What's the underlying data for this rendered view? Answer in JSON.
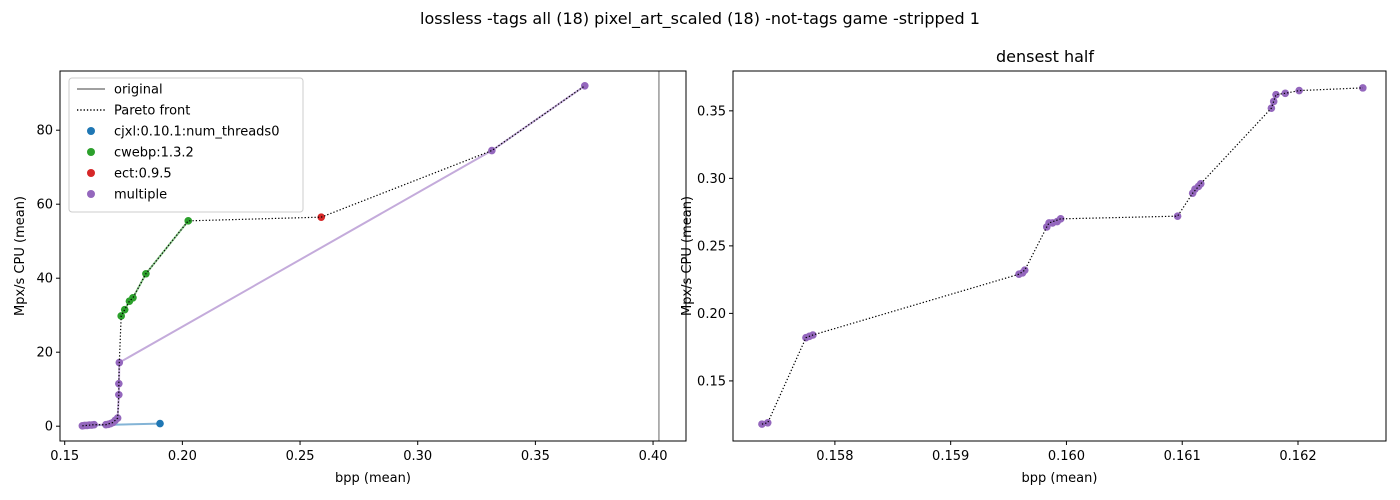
{
  "figure": {
    "suptitle": "lossless -tags all (18) pixel_art_scaled (18) -not-tags game -stripped 1"
  },
  "chart_data": [
    {
      "type": "scatter",
      "title": "",
      "xlabel": "bpp (mean)",
      "ylabel": "Mpx/s CPU (mean)",
      "xlim": [
        0.148,
        0.414
      ],
      "ylim": [
        -4,
        96
      ],
      "xticks": [
        0.15,
        0.2,
        0.25,
        0.3,
        0.35,
        0.4
      ],
      "xtick_labels": [
        "0.15",
        "0.20",
        "0.25",
        "0.30",
        "0.35",
        "0.40"
      ],
      "yticks": [
        0,
        20,
        40,
        60,
        80
      ],
      "ytick_labels": [
        "0",
        "20",
        "40",
        "60",
        "80"
      ],
      "grid": false,
      "legend": {
        "position": "top-left",
        "entries": [
          {
            "label": "original",
            "kind": "line",
            "color": "#808080"
          },
          {
            "label": "Pareto front",
            "kind": "dotted",
            "color": "#000000"
          },
          {
            "label": "cjxl:0.10.1:num_threads0",
            "kind": "marker",
            "color": "#1f77b4"
          },
          {
            "label": "cwebp:1.3.2",
            "kind": "marker",
            "color": "#2ca02c"
          },
          {
            "label": "ect:0.9.5",
            "kind": "marker",
            "color": "#d62728"
          },
          {
            "label": "multiple",
            "kind": "marker",
            "color": "#9467bd"
          }
        ]
      },
      "original_x": 0.4025,
      "series": [
        {
          "name": "cjxl:0.10.1:num_threads0",
          "color": "#1f77b4",
          "x": [
            0.1905
          ],
          "y": [
            0.7
          ],
          "line_x": [
            0.1575,
            0.1905
          ],
          "line_y": [
            0.2,
            0.7
          ]
        },
        {
          "name": "cwebp:1.3.2",
          "color": "#2ca02c",
          "x": [
            0.174,
            0.1755,
            0.1775,
            0.179,
            0.1845,
            0.2025
          ],
          "y": [
            29.8,
            31.5,
            33.8,
            34.7,
            41.2,
            55.5
          ],
          "line_x": [
            0.174,
            0.1755,
            0.1775,
            0.179,
            0.1845,
            0.2025
          ],
          "line_y": [
            29.8,
            31.5,
            33.8,
            34.7,
            41.2,
            55.5
          ]
        },
        {
          "name": "ect:0.9.5",
          "color": "#d62728",
          "x": [
            0.259
          ],
          "y": [
            56.5
          ],
          "line_x": [],
          "line_y": []
        },
        {
          "name": "multiple",
          "color": "#9467bd",
          "x": [
            0.1575,
            0.1585,
            0.1595,
            0.1605,
            0.1615,
            0.1625,
            0.1675,
            0.1685,
            0.1695,
            0.1705,
            0.1715,
            0.1725,
            0.173,
            0.173,
            0.1732,
            0.3315,
            0.371
          ],
          "y": [
            0.1,
            0.2,
            0.2,
            0.3,
            0.3,
            0.4,
            0.4,
            0.5,
            0.7,
            1.0,
            1.6,
            2.2,
            8.5,
            11.5,
            17.2,
            74.5,
            92.0
          ],
          "line_x": [
            0.1575,
            0.1625,
            0.1675,
            0.1705,
            0.1725,
            0.173,
            0.1732,
            0.3315,
            0.371
          ],
          "line_y": [
            0.1,
            0.4,
            0.4,
            1.0,
            2.2,
            8.5,
            17.2,
            74.5,
            92.0
          ]
        }
      ],
      "pareto_front": {
        "x": [
          0.1575,
          0.1625,
          0.1675,
          0.1705,
          0.1725,
          0.173,
          0.173,
          0.1732,
          0.174,
          0.1755,
          0.1775,
          0.179,
          0.1845,
          0.2025,
          0.259,
          0.3315,
          0.371
        ],
        "y": [
          0.1,
          0.4,
          0.4,
          1.0,
          2.2,
          8.5,
          11.5,
          17.2,
          29.8,
          31.5,
          33.8,
          34.7,
          41.2,
          55.5,
          56.5,
          74.5,
          92.0
        ]
      }
    },
    {
      "type": "scatter",
      "title": "densest half",
      "xlabel": "bpp (mean)",
      "ylabel": "Mpx/s CPU (mean)",
      "xlim": [
        0.15712,
        0.16276
      ],
      "ylim": [
        0.1055,
        0.3795
      ],
      "xticks": [
        0.158,
        0.159,
        0.16,
        0.161,
        0.162
      ],
      "xtick_labels": [
        "0.158",
        "0.159",
        "0.160",
        "0.161",
        "0.162"
      ],
      "yticks": [
        0.15,
        0.2,
        0.25,
        0.3,
        0.35
      ],
      "ytick_labels": [
        "0.15",
        "0.20",
        "0.25",
        "0.30",
        "0.35"
      ],
      "grid": false,
      "series": [
        {
          "name": "multiple",
          "color": "#9467bd",
          "x": [
            0.15737,
            0.15742,
            0.15775,
            0.15778,
            0.15781,
            0.15959,
            0.15962,
            0.15964,
            0.15983,
            0.15985,
            0.15988,
            0.15992,
            0.15995,
            0.16096,
            0.16109,
            0.16111,
            0.16114,
            0.16116,
            0.16177,
            0.16179,
            0.16181,
            0.16189,
            0.16201,
            0.16256
          ],
          "y": [
            0.118,
            0.119,
            0.182,
            0.183,
            0.184,
            0.229,
            0.23,
            0.232,
            0.264,
            0.267,
            0.267,
            0.268,
            0.27,
            0.272,
            0.289,
            0.292,
            0.294,
            0.296,
            0.352,
            0.357,
            0.362,
            0.363,
            0.365,
            0.367
          ]
        }
      ],
      "pareto_front": {
        "x": [
          0.15737,
          0.15742,
          0.15775,
          0.15781,
          0.15959,
          0.15964,
          0.15983,
          0.15985,
          0.15995,
          0.16096,
          0.16109,
          0.16116,
          0.16177,
          0.16181,
          0.16189,
          0.16201,
          0.16256
        ],
        "y": [
          0.118,
          0.119,
          0.182,
          0.184,
          0.229,
          0.232,
          0.264,
          0.267,
          0.27,
          0.272,
          0.289,
          0.296,
          0.352,
          0.362,
          0.363,
          0.365,
          0.367
        ]
      }
    }
  ]
}
